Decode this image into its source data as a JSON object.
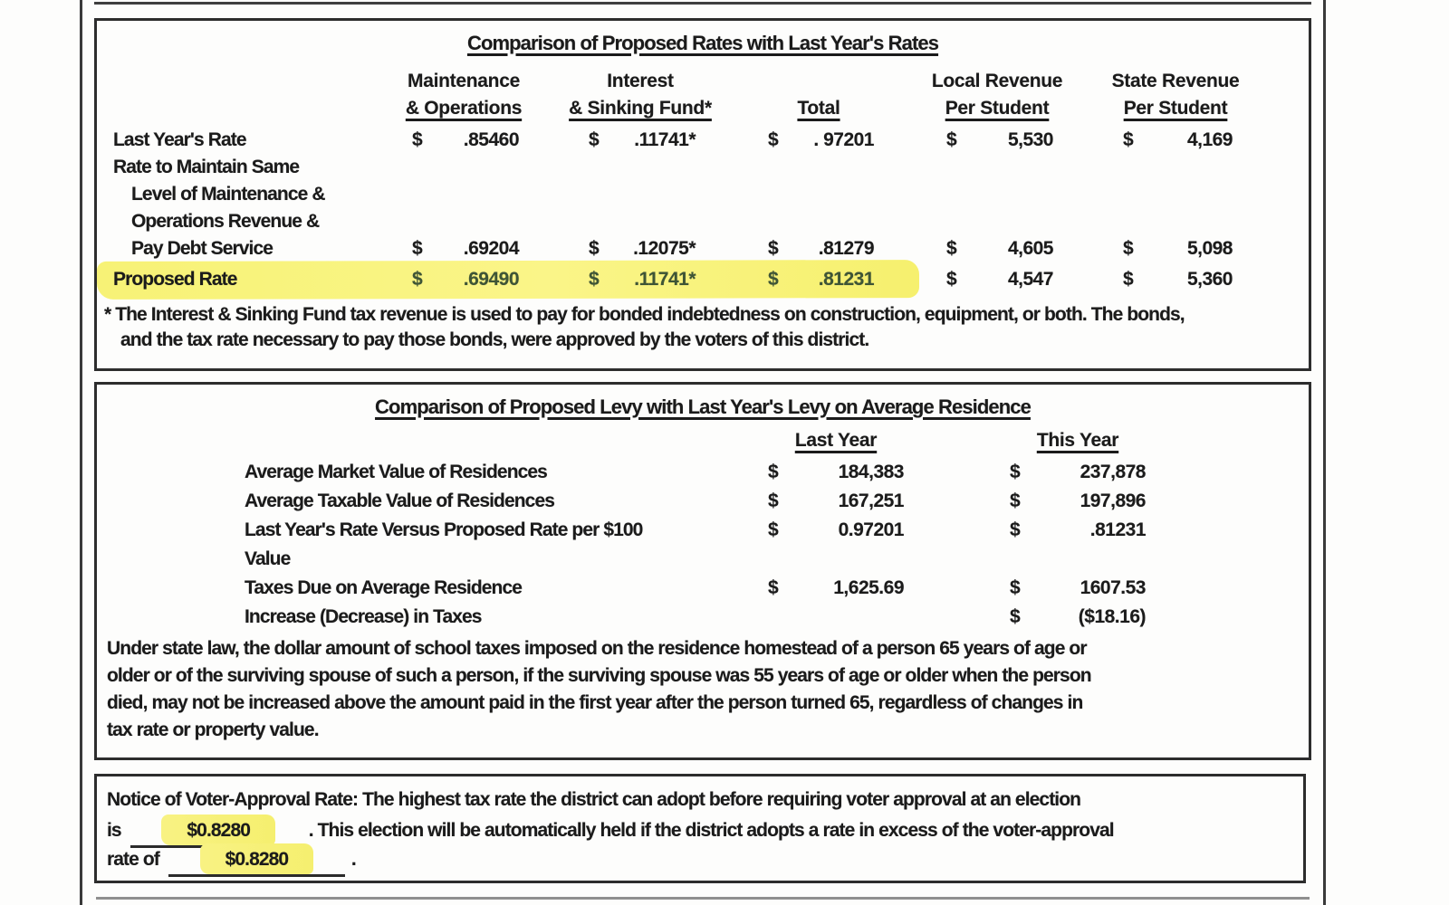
{
  "currency": "$",
  "colors": {
    "highlight_yellow": "#f7f276",
    "border_dark": "#2d2d2d",
    "proposed_value_green": "#3e5536"
  },
  "rates_table": {
    "title": "Comparison of Proposed Rates with Last Year's Rates",
    "headers": {
      "maintenance_line1": "Maintenance",
      "maintenance_line2": "& Operations",
      "interest_line1": "Interest",
      "interest_line2": "& Sinking Fund*",
      "total": "Total",
      "local_line1": "Local Revenue",
      "local_line2": "Per Student",
      "state_line1": "State Revenue",
      "state_line2": "Per Student"
    },
    "rows": {
      "last_year": {
        "label": "Last Year's Rate",
        "values": [
          ".85460",
          ".11741*",
          ". 97201",
          "5,530",
          "4,169"
        ]
      },
      "maintain": {
        "label_line1": "Rate to Maintain Same",
        "label_line2": "Level of Maintenance &",
        "label_line3": "Operations Revenue &",
        "label_line4": "Pay Debt Service",
        "values": [
          ".69204",
          ".12075*",
          ".81279",
          "4,605",
          "5,098"
        ]
      },
      "proposed": {
        "label": "Proposed Rate",
        "values": [
          ".69490",
          ".11741*",
          ".81231",
          "4,547",
          "5,360"
        ]
      }
    },
    "footnote_line1": "* The Interest & Sinking Fund tax revenue is used to pay for bonded indebtedness on construction, equipment, or both. The bonds,",
    "footnote_line2": "and the tax rate necessary to pay those bonds, were approved by the voters of this district."
  },
  "levy_table": {
    "title": "Comparison of Proposed Levy with Last Year's Levy on Average Residence",
    "headers": {
      "last_year": "Last Year",
      "this_year": "This Year"
    },
    "rows": {
      "market": {
        "label": "Average Market Value of Residences",
        "ly_val": "184,383",
        "ty_val": "237,878"
      },
      "taxable": {
        "label": "Average Taxable Value of Residences",
        "ly_val": "167,251",
        "ty_val": "197,896"
      },
      "rate_per_100": {
        "label": "Last Year's Rate Versus Proposed Rate per $100",
        "label_line2": "Value",
        "ly_val": "0.97201",
        "ty_val": ".81231"
      },
      "taxes_due": {
        "label": "Taxes Due on Average Residence",
        "ly_val": "1,625.69",
        "ty_val": "1607.53"
      },
      "increase": {
        "label": "Increase (Decrease) in Taxes",
        "ty_val": "($18.16)"
      }
    },
    "senior_law_lines": {
      "l1": "Under state law, the dollar amount of school taxes imposed on the residence homestead of a person 65 years of age or",
      "l2": "older or of the surviving spouse of such a person, if the surviving spouse was 55 years of age or older when the person",
      "l3": "died, may not be increased above the amount paid in the first year after the person turned 65, regardless of changes in",
      "l4": "tax rate or property value."
    }
  },
  "notice": {
    "line1": "Notice of Voter-Approval Rate: The highest tax rate the district can adopt before requiring voter approval at an election",
    "line2_pre": "is",
    "rate1": "$0.8280",
    "line2_post": ". This election will be automatically held if the district adopts a rate in excess of the voter-approval",
    "line3_pre": "rate of",
    "rate2": "$0.8280",
    "line3_post": "."
  }
}
